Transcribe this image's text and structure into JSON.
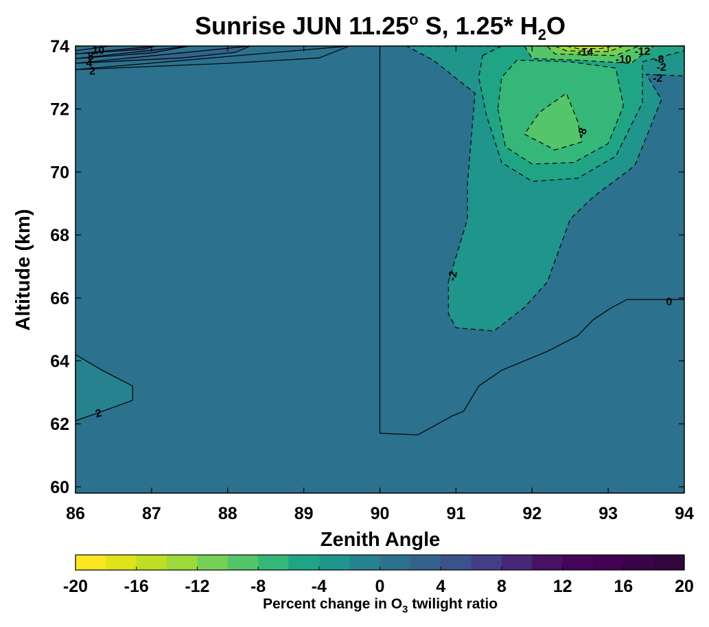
{
  "chart_data": {
    "type": "contour",
    "title": {
      "main": "Sunrise JUN 11.25",
      "sup": "o",
      "mid": " S, 1.25* H",
      "sub": "2",
      "end": "O"
    },
    "xlabel": "Zenith Angle",
    "ylabel": "Altitude (km)",
    "xlim": [
      86,
      94
    ],
    "ylim": [
      59.8,
      74
    ],
    "xticks": [
      "86",
      "87",
      "88",
      "89",
      "90",
      "91",
      "92",
      "93",
      "94"
    ],
    "yticks": [
      "60",
      "62",
      "64",
      "66",
      "68",
      "70",
      "72",
      "74"
    ],
    "colorbar": {
      "label": {
        "pre": "Percent change in O",
        "sub": "3",
        "post": " twilight ratio"
      },
      "range": [
        -20,
        20
      ],
      "step": 2,
      "ticks": [
        "-20",
        "-16",
        "-12",
        "-8",
        "-4",
        "0",
        "4",
        "8",
        "12",
        "16",
        "20"
      ],
      "colors": [
        "#f9e721",
        "#e0e31a",
        "#bfdf25",
        "#9dd93b",
        "#76d055",
        "#54c568",
        "#35b779",
        "#20a486",
        "#1f958b",
        "#26828e",
        "#2c718e",
        "#33638d",
        "#3b528b",
        "#433e85",
        "#482777",
        "#471164",
        "#450559",
        "#440154",
        "#3a0448",
        "#30063d"
      ]
    },
    "background_value": 1,
    "contour_labels": [
      "10",
      "8",
      "4",
      "2",
      "2",
      "-14",
      "-12",
      "-10",
      "-8",
      "-8",
      "-2",
      "-2",
      "-2",
      "0"
    ],
    "levels": [
      {
        "value": 2,
        "points": [
          [
            86,
            73.25
          ],
          [
            88.0,
            73.45
          ],
          [
            89.2,
            73.62
          ],
          [
            89.6,
            74
          ]
        ],
        "fill": "#2c718e"
      },
      {
        "value": 4,
        "points": [
          [
            86,
            73.45
          ],
          [
            87.4,
            73.62
          ],
          [
            88.1,
            73.8
          ],
          [
            88.3,
            74
          ]
        ],
        "fill": "#33638d"
      },
      {
        "value": 6,
        "points": [
          [
            86,
            73.6
          ],
          [
            87.0,
            73.78
          ],
          [
            87.5,
            74
          ]
        ],
        "fill": "#3b528b"
      },
      {
        "value": 8,
        "points": [
          [
            86,
            73.75
          ],
          [
            86.9,
            73.9
          ],
          [
            87.05,
            74
          ]
        ],
        "fill": "#433e85"
      },
      {
        "value": 10,
        "points": [
          [
            86,
            73.85
          ],
          [
            86.45,
            74
          ]
        ],
        "fill": "#482777"
      },
      {
        "value": 2,
        "points": [
          [
            86,
            64.2
          ],
          [
            86.35,
            63.7
          ],
          [
            86.75,
            63.2
          ],
          [
            86.75,
            62.75
          ],
          [
            86.3,
            62.35
          ],
          [
            86,
            62.1
          ]
        ],
        "fill": "#26828e"
      },
      {
        "value": -2,
        "points": [
          [
            90.9,
            66.5
          ],
          [
            91.15,
            68.5
          ],
          [
            91.15,
            69.6
          ],
          [
            91.25,
            72.5
          ],
          [
            90.7,
            73.55
          ],
          [
            90.35,
            74
          ],
          [
            94,
            74
          ],
          [
            94,
            73.05
          ],
          [
            93.5,
            73.1
          ],
          [
            93.7,
            72.3
          ],
          [
            93.35,
            70.2
          ],
          [
            92.8,
            69.2
          ],
          [
            92.5,
            68.5
          ],
          [
            92.2,
            66.5
          ],
          [
            91.9,
            65.7
          ],
          [
            91.5,
            64.95
          ],
          [
            91.0,
            65.05
          ],
          [
            90.9,
            65.5
          ]
        ],
        "fill": "#1f958b"
      },
      {
        "value": -4,
        "points": [
          [
            91.35,
            73.7
          ],
          [
            91.6,
            74
          ],
          [
            94,
            74
          ],
          [
            94,
            73.85
          ],
          [
            93.45,
            73.5
          ],
          [
            93.45,
            72.2
          ],
          [
            93.1,
            70.5
          ],
          [
            92.6,
            69.8
          ],
          [
            92.0,
            69.7
          ],
          [
            91.6,
            70.3
          ],
          [
            91.4,
            71.8
          ],
          [
            91.3,
            73.0
          ]
        ],
        "fill": "#20a486"
      },
      {
        "value": -6,
        "points": [
          [
            91.55,
            72.0
          ],
          [
            91.65,
            70.8
          ],
          [
            92.0,
            70.25
          ],
          [
            92.55,
            70.3
          ],
          [
            93.0,
            70.9
          ],
          [
            93.2,
            72.1
          ],
          [
            93.1,
            73.3
          ],
          [
            92.5,
            73.5
          ],
          [
            91.8,
            73.55
          ],
          [
            91.6,
            73.0
          ]
        ],
        "fill": "#35b779"
      },
      {
        "value": -8,
        "points": [
          [
            91.9,
            71.2
          ],
          [
            92.3,
            70.7
          ],
          [
            92.65,
            70.95
          ],
          [
            92.6,
            71.6
          ],
          [
            92.45,
            72.5
          ],
          [
            92.1,
            71.9
          ]
        ],
        "fill": "#54c568"
      },
      {
        "value": -8,
        "points": [
          [
            91.9,
            74
          ],
          [
            92.0,
            73.6
          ],
          [
            92.6,
            73.55
          ],
          [
            93.3,
            73.45
          ],
          [
            93.6,
            74
          ]
        ],
        "fill": "#54c568"
      },
      {
        "value": -10,
        "points": [
          [
            92.2,
            74
          ],
          [
            92.3,
            73.75
          ],
          [
            92.7,
            73.72
          ],
          [
            93.1,
            73.7
          ],
          [
            93.4,
            74
          ]
        ],
        "fill": "#76d055"
      },
      {
        "value": -12,
        "points": [
          [
            92.3,
            74
          ],
          [
            92.45,
            73.85
          ],
          [
            93.0,
            73.82
          ],
          [
            93.2,
            74
          ]
        ],
        "fill": "#9dd93b"
      },
      {
        "value": -14,
        "points": [
          [
            92.45,
            74
          ],
          [
            92.6,
            73.92
          ],
          [
            92.9,
            73.92
          ],
          [
            93.05,
            74
          ]
        ],
        "fill": "#bfdf25"
      }
    ],
    "zero_contour": [
      [
        90,
        74
      ],
      [
        90,
        61.7
      ],
      [
        90.5,
        61.65
      ],
      [
        90.95,
        62.25
      ],
      [
        91.1,
        62.4
      ],
      [
        91.3,
        63.2
      ],
      [
        91.6,
        63.7
      ],
      [
        92.2,
        64.3
      ],
      [
        92.6,
        64.8
      ],
      [
        92.8,
        65.3
      ],
      [
        93.05,
        65.7
      ],
      [
        93.25,
        65.95
      ],
      [
        94,
        65.95
      ]
    ]
  }
}
